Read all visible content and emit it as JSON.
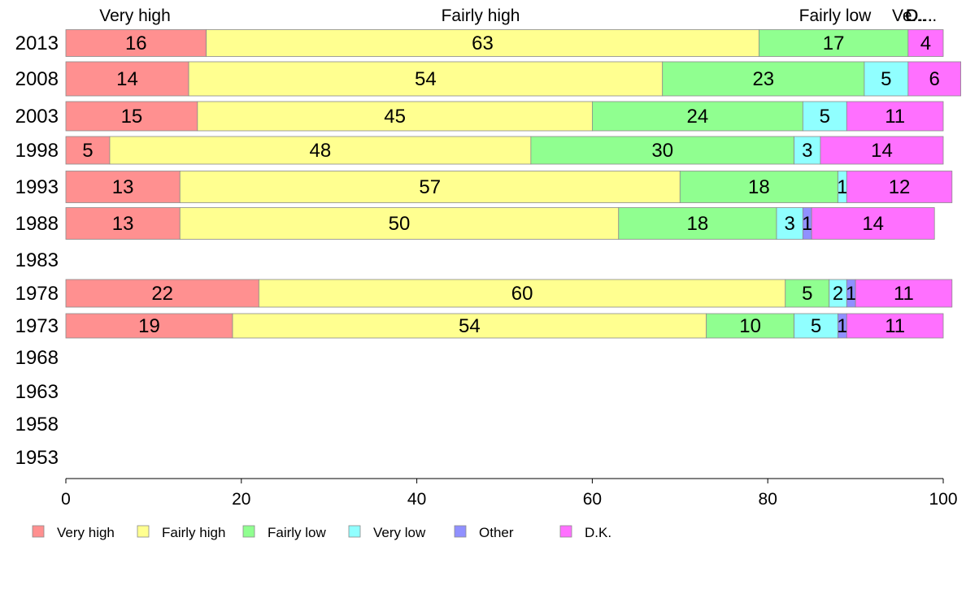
{
  "chart_data": {
    "type": "bar",
    "orientation": "horizontal",
    "stacked": true,
    "categories": [
      "2013",
      "2008",
      "2003",
      "1998",
      "1993",
      "1988",
      "1983",
      "1978",
      "1973",
      "1968",
      "1963",
      "1958",
      "1953"
    ],
    "series": [
      {
        "name": "Very high",
        "color": "#ff9090",
        "values": [
          16,
          14,
          15,
          5,
          13,
          13,
          null,
          22,
          19,
          null,
          null,
          null,
          null
        ]
      },
      {
        "name": "Fairly high",
        "color": "#ffff90",
        "values": [
          63,
          54,
          45,
          48,
          57,
          50,
          null,
          60,
          54,
          null,
          null,
          null,
          null
        ]
      },
      {
        "name": "Fairly low",
        "color": "#90ff90",
        "values": [
          17,
          23,
          24,
          30,
          18,
          18,
          null,
          5,
          10,
          null,
          null,
          null,
          null
        ]
      },
      {
        "name": "Very low",
        "color": "#90ffff",
        "values": [
          0,
          5,
          5,
          3,
          1,
          3,
          null,
          2,
          5,
          null,
          null,
          null,
          null
        ]
      },
      {
        "name": "Other",
        "color": "#9090ff",
        "values": [
          0,
          0,
          0,
          0,
          0,
          1,
          null,
          1,
          1,
          null,
          null,
          null,
          null
        ]
      },
      {
        "name": "D.K.",
        "color": "#ff70ff",
        "values": [
          4,
          6,
          11,
          14,
          12,
          14,
          null,
          11,
          11,
          null,
          null,
          null,
          null
        ]
      }
    ],
    "top_labels": [
      "Very high",
      "Fairly high",
      "Fairly low",
      "Ve...",
      "O...",
      "D...."
    ],
    "xlim": [
      0,
      100
    ],
    "x_ticks": [
      0,
      20,
      40,
      60,
      80,
      100
    ],
    "grid": false,
    "legend_position": "bottom"
  }
}
